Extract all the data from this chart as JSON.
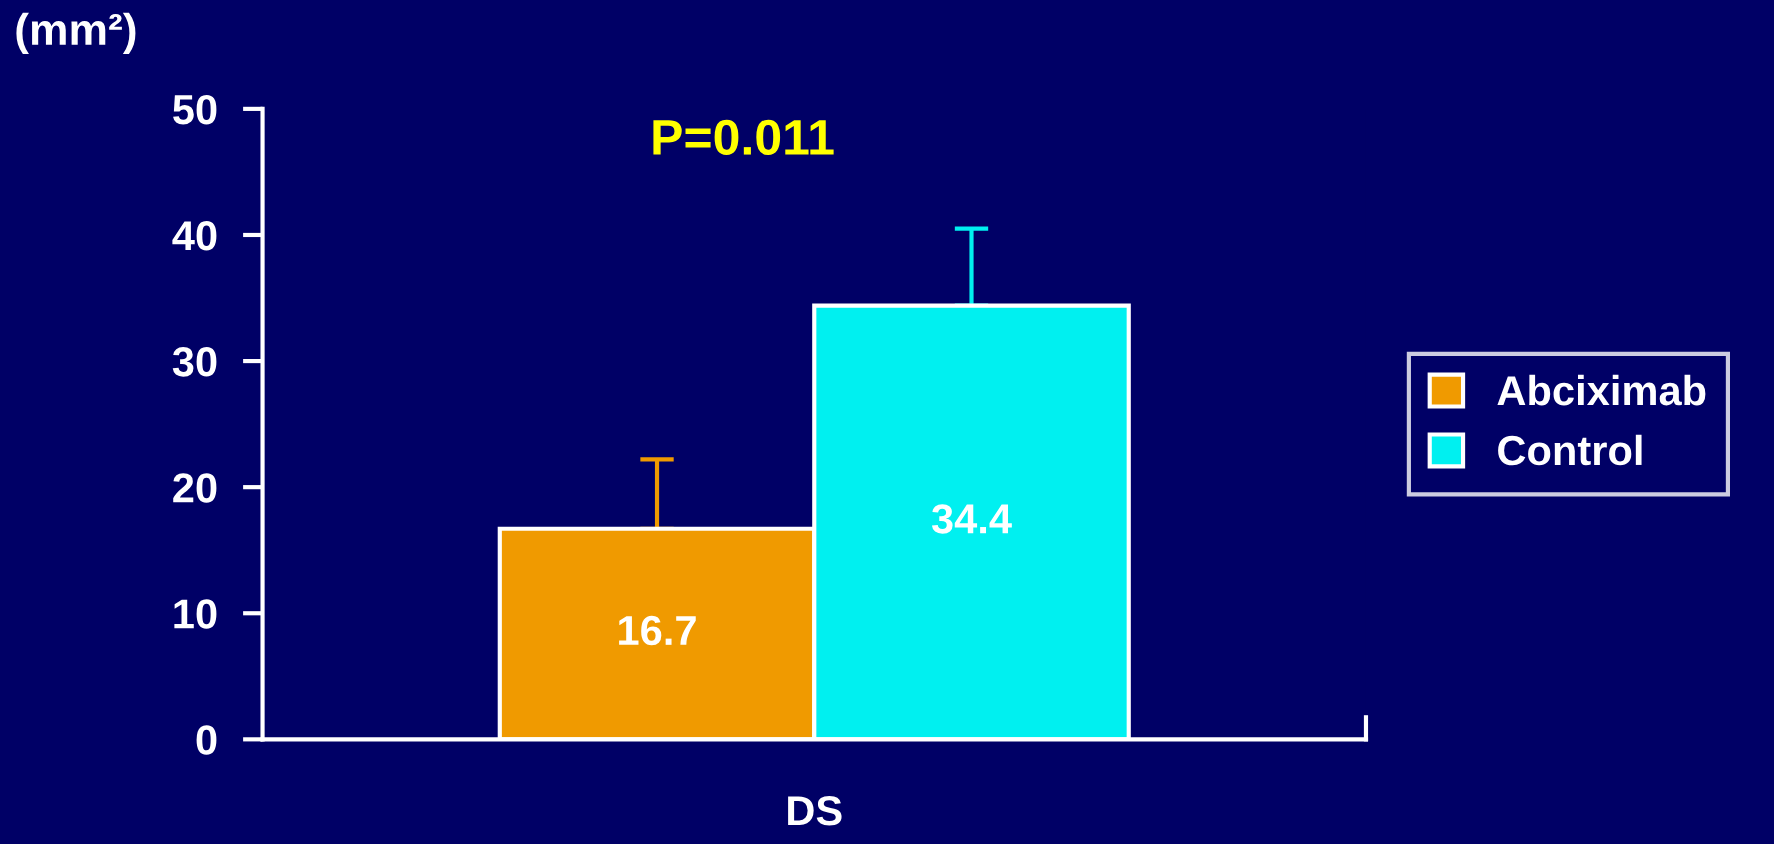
{
  "chart_data": {
    "type": "bar",
    "ylabel": "(mm²)",
    "categories": [
      "DS"
    ],
    "series": [
      {
        "name": "Abciximab",
        "color": "#f09a00",
        "values": [
          16.7
        ],
        "errors": [
          [
            16.7,
            22.2
          ]
        ]
      },
      {
        "name": "Control",
        "color": "#00f0f0",
        "values": [
          34.4
        ],
        "errors": [
          [
            34.4,
            40.5
          ]
        ]
      }
    ],
    "ylim": [
      0,
      50
    ],
    "yticks": [
      0,
      10,
      20,
      30,
      40,
      50
    ],
    "data_labels": true,
    "legend": "right",
    "grid": false,
    "annotations": [
      "P=0.011"
    ]
  }
}
